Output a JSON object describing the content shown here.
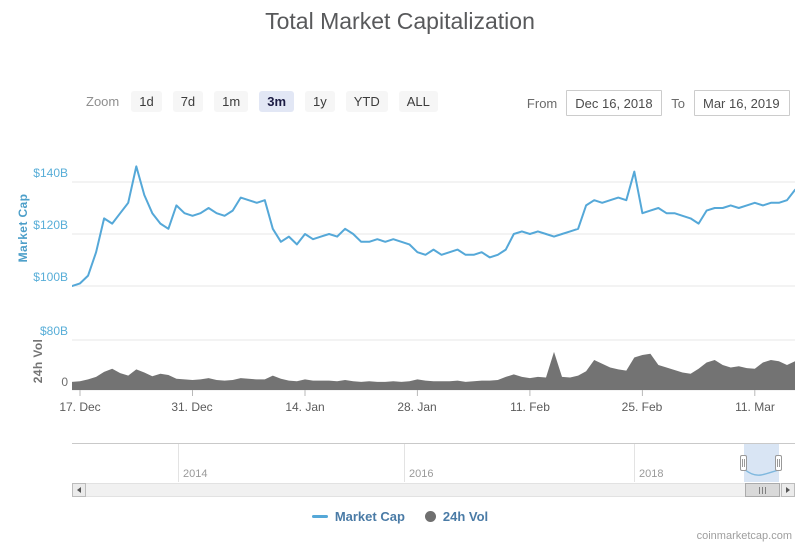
{
  "title": "Total Market Capitalization",
  "toolbar": {
    "zoom_label": "Zoom",
    "buttons": [
      {
        "label": "1d",
        "selected": false
      },
      {
        "label": "7d",
        "selected": false
      },
      {
        "label": "1m",
        "selected": false
      },
      {
        "label": "3m",
        "selected": true
      },
      {
        "label": "1y",
        "selected": false
      },
      {
        "label": "YTD",
        "selected": false
      },
      {
        "label": "ALL",
        "selected": false
      }
    ],
    "from_label": "From",
    "from_value": "Dec 16, 2018",
    "to_label": "To",
    "to_value": "Mar 16, 2019"
  },
  "chart_data": [
    {
      "type": "line",
      "name": "Market Cap",
      "color": "#55a8d8",
      "unit": "billion USD",
      "x_start": "2018-12-16",
      "x_end": "2019-03-16",
      "x_interval_days": 1,
      "x_tick_labels": [
        "17. Dec",
        "31. Dec",
        "14. Jan",
        "28. Jan",
        "11. Feb",
        "25. Feb",
        "11. Mar"
      ],
      "x_tick_day_index": [
        1,
        15,
        29,
        43,
        57,
        71,
        85
      ],
      "y_axis_title": "Market Cap",
      "y_tick_labels": [
        "$140B",
        "$120B",
        "$100B"
      ],
      "y_ticks_billions": [
        140,
        120,
        100
      ],
      "ylim_billions": [
        93,
        152
      ],
      "grid": "horizontal",
      "legend_position": "bottom",
      "values_billions": [
        100,
        101,
        104,
        113,
        126,
        124,
        128,
        132,
        146,
        135,
        128,
        124,
        122,
        131,
        128,
        127,
        128,
        130,
        128,
        127,
        129,
        134,
        133,
        132,
        133,
        122,
        117,
        119,
        116,
        120,
        118,
        119,
        120,
        119,
        122,
        120,
        117,
        117,
        118,
        117,
        118,
        117,
        116,
        113,
        112,
        114,
        112,
        113,
        114,
        112,
        112,
        113,
        111,
        112,
        114,
        120,
        121,
        120,
        121,
        120,
        119,
        120,
        121,
        122,
        131,
        133,
        132,
        133,
        134,
        133,
        144,
        128,
        129,
        130,
        128,
        128,
        127,
        126,
        124,
        129,
        130,
        130,
        131,
        130,
        131,
        132,
        131,
        132,
        132,
        133,
        137
      ]
    },
    {
      "type": "area",
      "name": "24h Vol",
      "color": "#737373",
      "unit": "billion USD",
      "x_start": "2018-12-16",
      "x_end": "2019-03-16",
      "x_interval_days": 1,
      "y_axis_title": "24h Vol",
      "y_tick_labels": [
        "$80B",
        "0"
      ],
      "y_ticks_billions": [
        80,
        0
      ],
      "ylim_billions": [
        0,
        80
      ],
      "grid": "horizontal",
      "values_billions": [
        13,
        14,
        17,
        21,
        29,
        34,
        27,
        23,
        33,
        28,
        22,
        26,
        24,
        18,
        17,
        16,
        17,
        19,
        16,
        15,
        16,
        19,
        18,
        17,
        17,
        23,
        18,
        15,
        14,
        17,
        15,
        15,
        15,
        14,
        16,
        14,
        13,
        14,
        13,
        13,
        14,
        13,
        14,
        17,
        15,
        14,
        14,
        14,
        15,
        13,
        14,
        15,
        15,
        16,
        21,
        25,
        21,
        19,
        21,
        20,
        61,
        21,
        20,
        23,
        30,
        48,
        42,
        36,
        33,
        31,
        52,
        56,
        58,
        40,
        36,
        32,
        28,
        26,
        34,
        44,
        48,
        40,
        36,
        38,
        35,
        34,
        44,
        48,
        46,
        40,
        46
      ]
    }
  ],
  "navigator": {
    "year_labels": [
      "2014",
      "2016",
      "2018"
    ]
  },
  "legend": {
    "items": [
      {
        "label": "Market Cap",
        "marker": "line",
        "color": "#55a8d8"
      },
      {
        "label": "24h Vol",
        "marker": "circle",
        "color": "#6f6f6f"
      }
    ]
  },
  "watermark": "coinmarketcap.com"
}
